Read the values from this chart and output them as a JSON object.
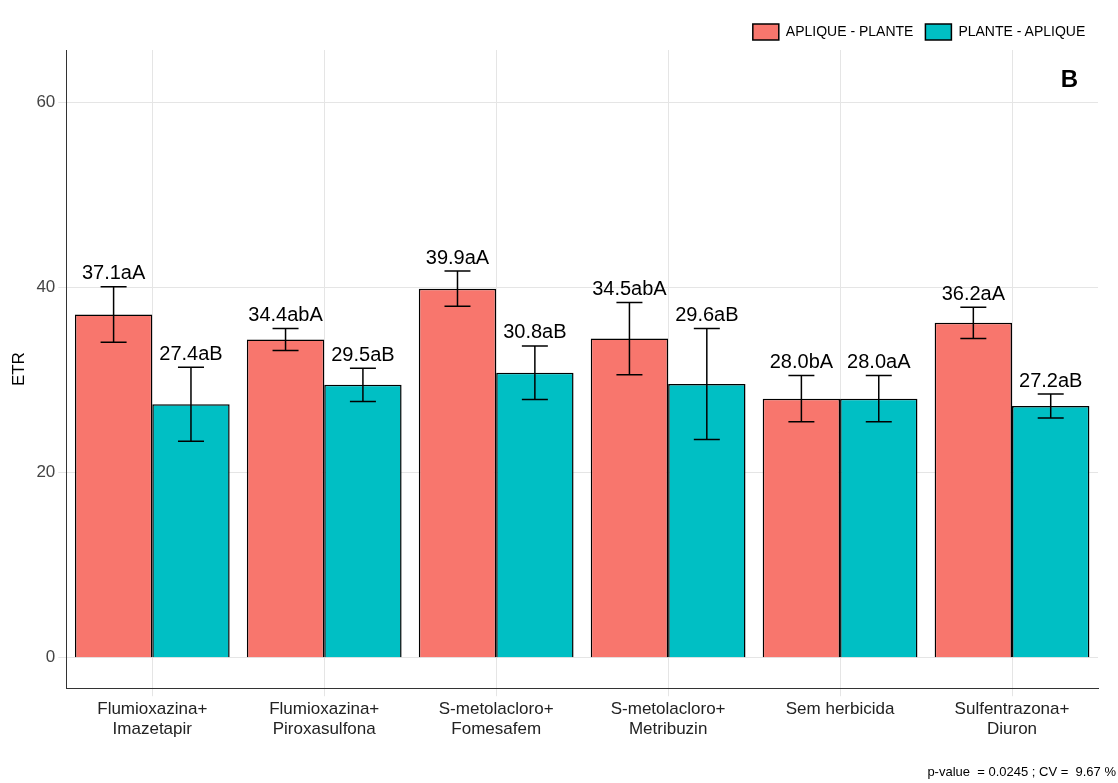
{
  "chart_data": {
    "type": "bar",
    "ylabel": "ETR",
    "categories": [
      "Flumioxazina+\nImazetapir",
      "Flumioxazina+\nPiroxasulfona",
      "S-metolacloro+\nFomesafem",
      "S-metolacloro+\nMetribuzin",
      "Sem herbicida",
      "Sulfentrazona+\nDiuron"
    ],
    "series": [
      {
        "name": "APLIQUE - PLANTE",
        "color": "#f8766d",
        "values": [
          37.1,
          34.4,
          39.9,
          34.5,
          28.0,
          36.2
        ],
        "errors": [
          3.0,
          1.2,
          1.9,
          3.9,
          2.5,
          1.7
        ],
        "value_labels": [
          "37.1aA",
          "34.4abA",
          "39.9aA",
          "34.5abA",
          "28.0bA",
          "36.2aA"
        ]
      },
      {
        "name": "PLANTE - APLIQUE",
        "color": "#00bfc4",
        "values": [
          27.4,
          29.5,
          30.8,
          29.6,
          28.0,
          27.2
        ],
        "errors": [
          4.0,
          1.8,
          2.9,
          6.0,
          2.5,
          1.3
        ],
        "value_labels": [
          "27.4aB",
          "29.5aB",
          "30.8aB",
          "29.6aB",
          "28.0aA",
          "27.2aB"
        ]
      }
    ],
    "ylim": [
      -3.3,
      65.7
    ],
    "yticks": [
      0,
      20,
      40,
      60
    ],
    "grid": true,
    "legend": "top right",
    "annotations": [
      "B",
      "p-value  = 0.0245 ; CV =  9.67 %"
    ]
  }
}
